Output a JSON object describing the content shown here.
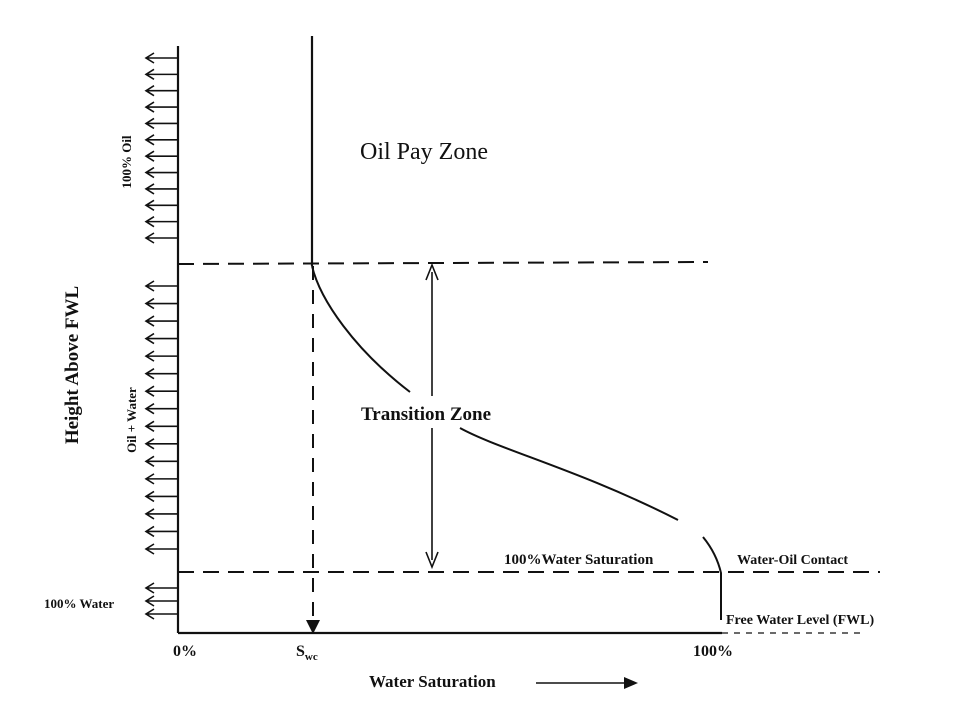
{
  "diagram": {
    "zones": {
      "oil_pay": "Oil Pay Zone",
      "transition": "Transition Zone"
    },
    "axis": {
      "y_title": "Height Above FWL",
      "x_title": "Water Saturation",
      "x_ticks": {
        "zero": "0%",
        "swc_main": "S",
        "swc_sub": "wc",
        "hundred": "100%"
      }
    },
    "side_labels": {
      "oil": "100% Oil",
      "oil_water": "Oil + Water",
      "water": "100% Water"
    },
    "annotations": {
      "water_sat_100": "100%Water Saturation",
      "woc": "Water-Oil Contact",
      "fwl": "Free Water Level (FWL)"
    },
    "colors": {
      "ink": "#111111",
      "background": "#ffffff"
    },
    "arrows": {
      "oil_zone_count": 12,
      "transition_zone_count": 16,
      "water_zone_count": 3
    }
  }
}
